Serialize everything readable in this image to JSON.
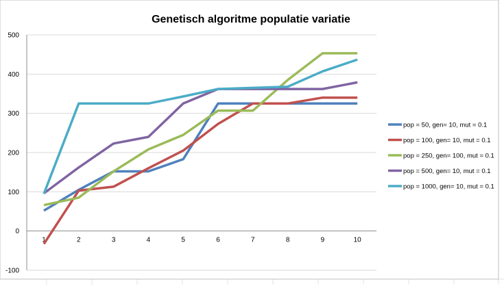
{
  "chart_data": {
    "type": "line",
    "title": "Genetisch algoritme populatie variatie",
    "xlabel": "",
    "ylabel": "",
    "categories": [
      "1",
      "2",
      "3",
      "4",
      "5",
      "6",
      "7",
      "8",
      "9",
      "10"
    ],
    "ylim": [
      -100,
      500
    ],
    "yticks": [
      -100,
      0,
      100,
      200,
      300,
      400,
      500
    ],
    "grid": true,
    "legend_position": "right",
    "series": [
      {
        "name": "pop = 50, gen= 10, mut = 0.1",
        "color": "#4f81bd",
        "values": [
          52,
          105,
          152,
          152,
          183,
          325,
          325,
          325,
          325,
          325
        ]
      },
      {
        "name": "pop = 100, gen= 10, mut = 0.1",
        "color": "#c0504d",
        "values": [
          -33,
          103,
          113,
          160,
          205,
          273,
          325,
          325,
          340,
          340
        ]
      },
      {
        "name": "pop = 250, gen= 100, mut = 0.1",
        "color": "#9bbb59",
        "values": [
          66,
          85,
          152,
          208,
          245,
          307,
          307,
          385,
          453,
          453
        ]
      },
      {
        "name": "pop = 500, gen= 10, mut = 0.1",
        "color": "#8064a2",
        "values": [
          96,
          162,
          223,
          240,
          325,
          362,
          362,
          362,
          362,
          379
        ]
      },
      {
        "name": "pop = 1000, gen= 10, mut = 0.1",
        "color": "#4bacc6",
        "values": [
          95,
          325,
          325,
          325,
          343,
          362,
          365,
          368,
          407,
          437
        ]
      }
    ]
  }
}
